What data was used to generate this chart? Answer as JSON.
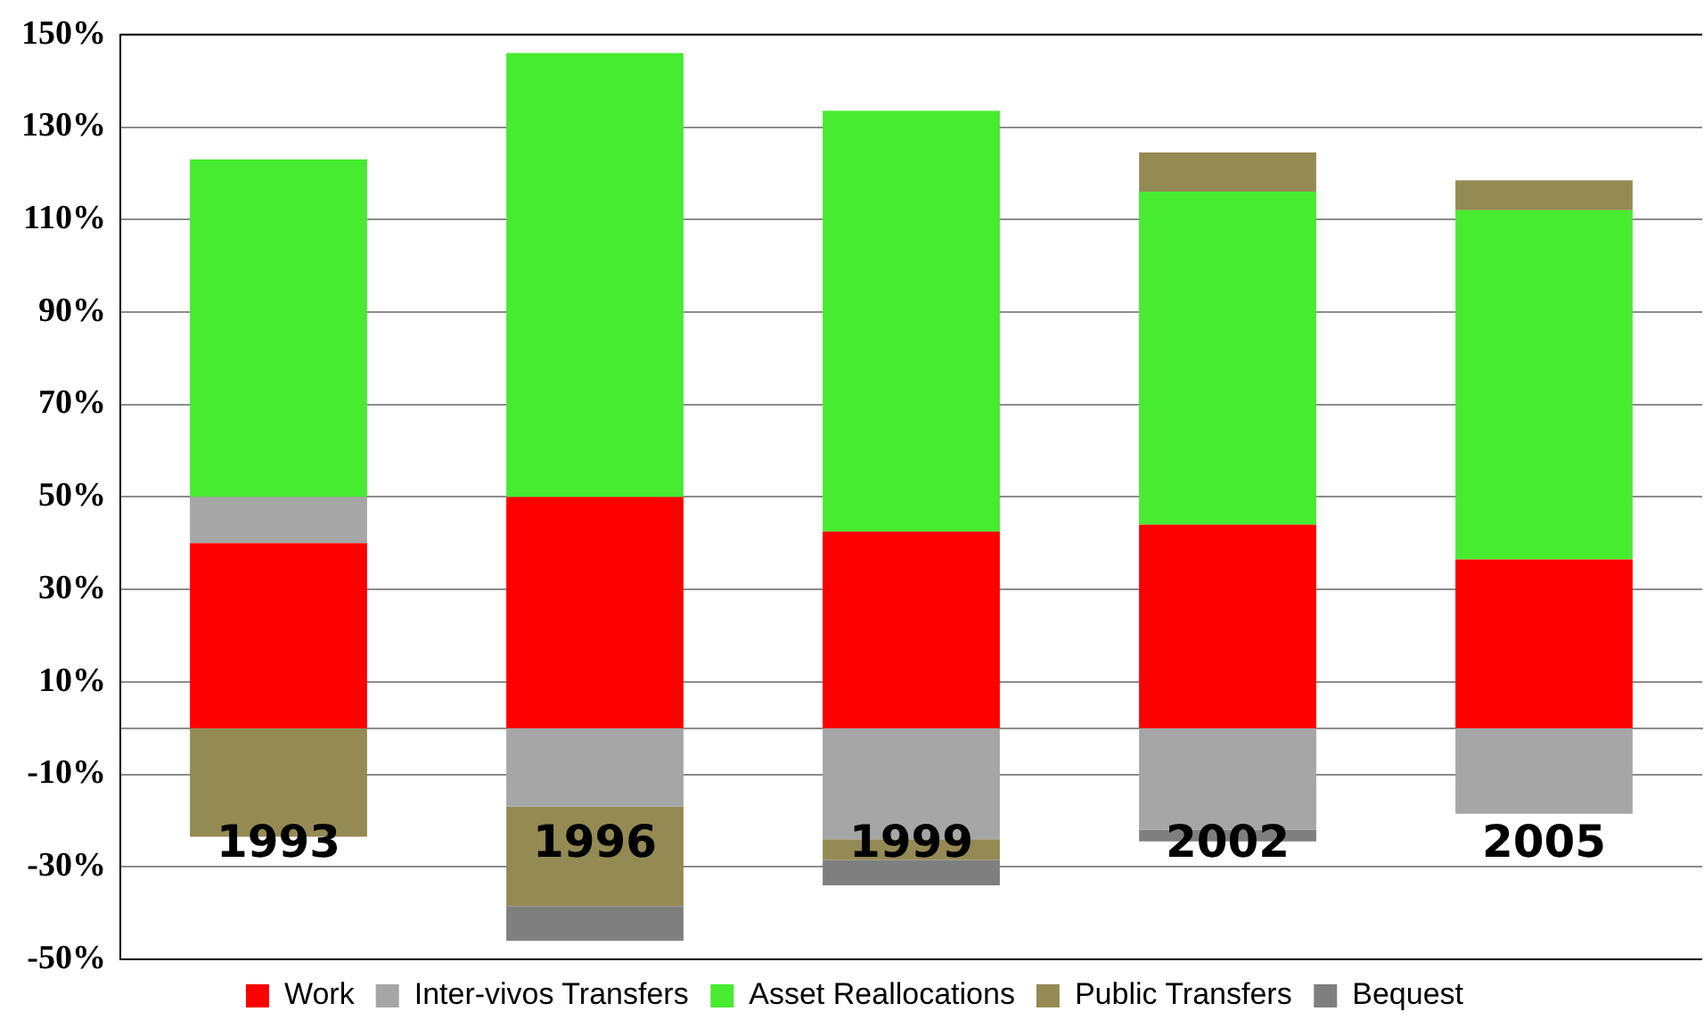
{
  "chart_data": {
    "type": "bar",
    "stacked": true,
    "categories": [
      "1993",
      "1996",
      "1999",
      "2002",
      "2005"
    ],
    "series": [
      {
        "name": "Work",
        "color": "#ff0000",
        "values": [
          40,
          50,
          42.5,
          44,
          36.5
        ]
      },
      {
        "name": "Inter-vivos Transfers",
        "color": "#a6a6a6",
        "values": [
          10,
          -17,
          -24,
          -22,
          -18.5
        ]
      },
      {
        "name": "Asset Reallocations",
        "color": "#47eb30",
        "values": [
          73,
          96,
          91,
          72,
          75.5
        ]
      },
      {
        "name": "Public Transfers",
        "color": "#948a54",
        "values": [
          -23.5,
          -21.5,
          -4.5,
          8.5,
          6.5
        ]
      },
      {
        "name": "Bequest",
        "color": "#7f7f7f",
        "values": [
          null,
          -7.5,
          -5.5,
          -2.5,
          null
        ]
      }
    ],
    "ylim": [
      -50,
      150
    ],
    "yticks": [
      {
        "value": -50,
        "label": "-50%"
      },
      {
        "value": -30,
        "label": "-30%"
      },
      {
        "value": -10,
        "label": "-10%"
      },
      {
        "value": 10,
        "label": "10%"
      },
      {
        "value": 30,
        "label": "30%"
      },
      {
        "value": 50,
        "label": "50%"
      },
      {
        "value": 70,
        "label": "70%"
      },
      {
        "value": 90,
        "label": "90%"
      },
      {
        "value": 110,
        "label": "110%"
      },
      {
        "value": 130,
        "label": "130%"
      },
      {
        "value": 150,
        "label": "150%"
      }
    ],
    "grid": "y",
    "legend": "bottom"
  }
}
